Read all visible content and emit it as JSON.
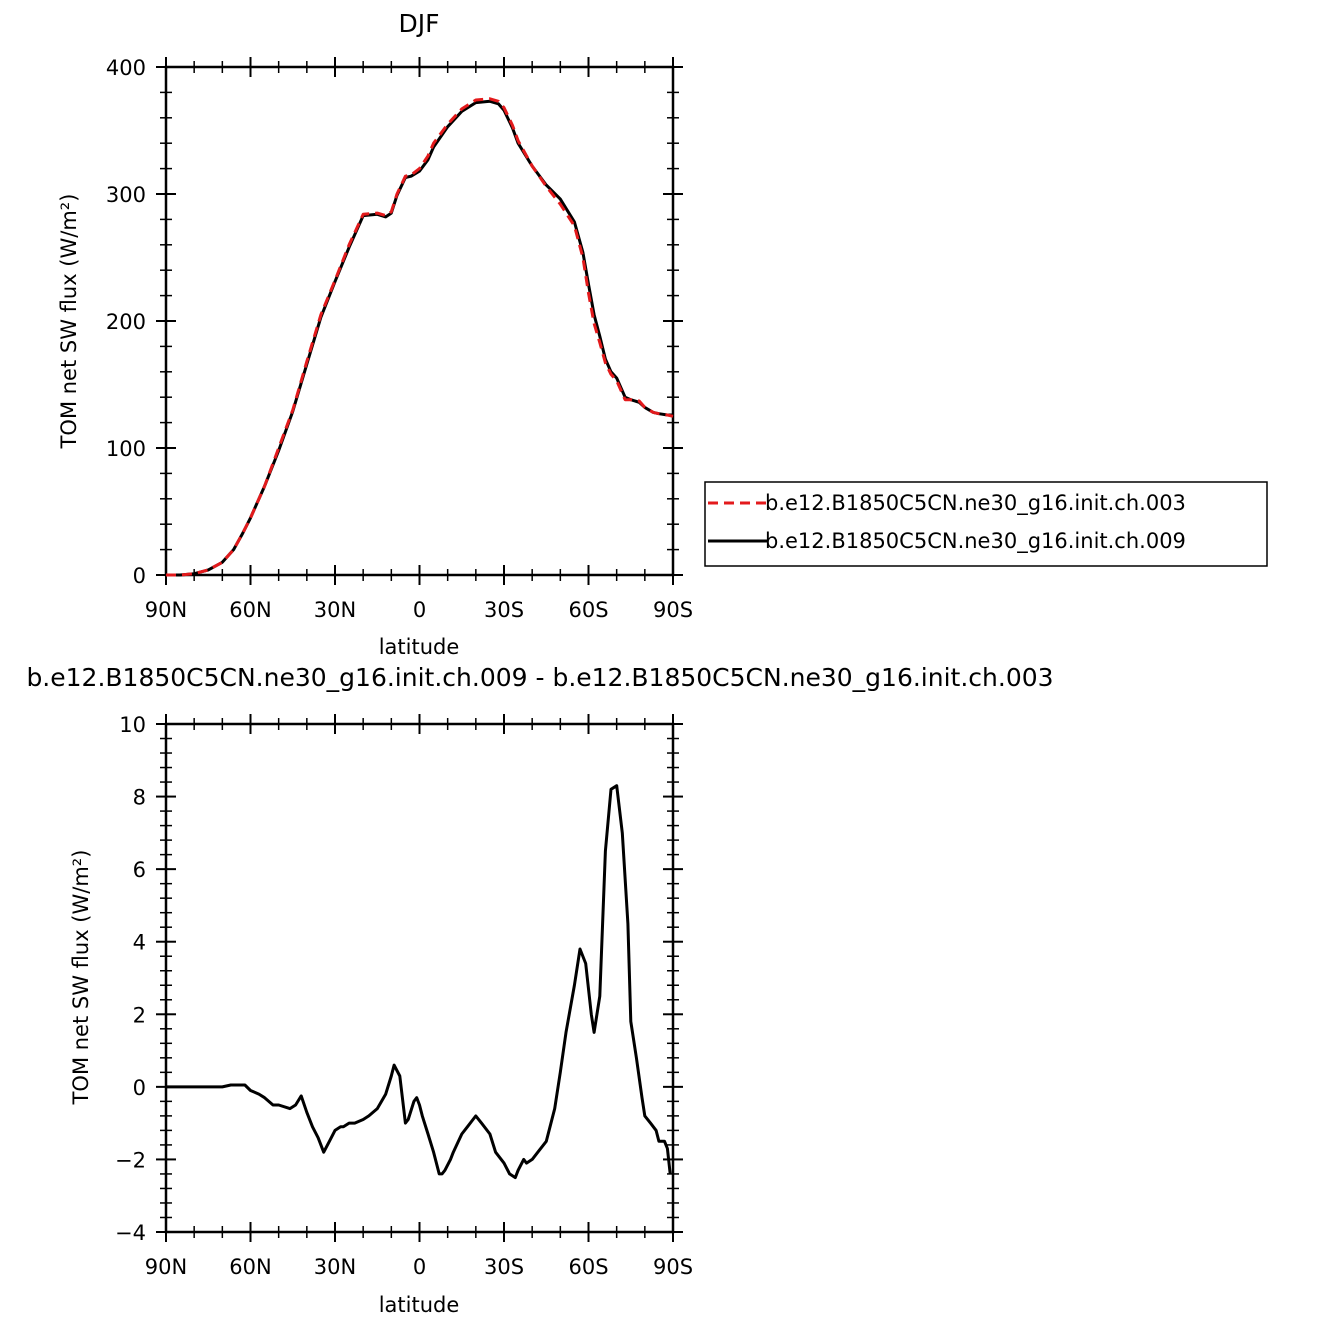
{
  "chart_data": [
    {
      "type": "line",
      "title": "DJF",
      "xlabel": "latitude",
      "ylabel": "TOM net SW flux (W/m²)",
      "xlim": [
        90,
        -90
      ],
      "ylim": [
        0,
        400
      ],
      "xticks": [
        90,
        60,
        30,
        0,
        -30,
        -60,
        -90
      ],
      "xtick_labels": [
        "90N",
        "60N",
        "30N",
        "0",
        "30S",
        "60S",
        "90S"
      ],
      "yticks": [
        0,
        100,
        200,
        300,
        400
      ],
      "ytick_labels": [
        "0",
        "100",
        "200",
        "300",
        "400"
      ],
      "legend_position": "right",
      "x": [
        90,
        85,
        80,
        75,
        70,
        66,
        63,
        60,
        55,
        50,
        45,
        40,
        35,
        30,
        25,
        20,
        15,
        12,
        10,
        8,
        5,
        3,
        0,
        -3,
        -5,
        -10,
        -15,
        -20,
        -25,
        -28,
        -30,
        -33,
        -35,
        -40,
        -45,
        -50,
        -55,
        -58,
        -60,
        -62,
        -64,
        -66,
        -68,
        -70,
        -73,
        -75,
        -78,
        -80,
        -83,
        -85,
        -88,
        -90
      ],
      "series": [
        {
          "name": "b.e12.B1850C5CN.ne30_g16.init.ch.003",
          "color": "#e31a1c",
          "dash": "dashed",
          "values": [
            0,
            0,
            1,
            4,
            10,
            20,
            32,
            45,
            70,
            100,
            130,
            168,
            205,
            232,
            260,
            284,
            285,
            283,
            286,
            300,
            314,
            315,
            320,
            330,
            340,
            355,
            367,
            374,
            375,
            373,
            368,
            354,
            342,
            322,
            306,
            292,
            275,
            250,
            222,
            198,
            183,
            167,
            158,
            153,
            138,
            138,
            137,
            132,
            128,
            127,
            126,
            125
          ]
        },
        {
          "name": "b.e12.B1850C5CN.ne30_g16.init.ch.009",
          "color": "#000000",
          "dash": "solid",
          "values": [
            0,
            0,
            1,
            4,
            10,
            20,
            32,
            45,
            70,
            98,
            129,
            166,
            203,
            231,
            258,
            283,
            284,
            282,
            285,
            299,
            313,
            314,
            318,
            327,
            337,
            353,
            365,
            372,
            373,
            371,
            366,
            352,
            340,
            322,
            307,
            296,
            278,
            254,
            229,
            205,
            188,
            170,
            160,
            155,
            140,
            138,
            136,
            132,
            128,
            127,
            126,
            126
          ]
        }
      ]
    },
    {
      "type": "line",
      "title": "b.e12.B1850C5CN.ne30_g16.init.ch.009 - b.e12.B1850C5CN.ne30_g16.init.ch.003",
      "xlabel": "latitude",
      "ylabel": "TOM net SW flux (W/m²)",
      "xlim": [
        90,
        -90
      ],
      "ylim": [
        -4,
        10
      ],
      "xticks": [
        90,
        60,
        30,
        0,
        -30,
        -60,
        -90
      ],
      "xtick_labels": [
        "90N",
        "60N",
        "30N",
        "0",
        "30S",
        "60S",
        "90S"
      ],
      "yticks": [
        -4,
        -2,
        0,
        2,
        4,
        6,
        8,
        10
      ],
      "ytick_labels": [
        "−4",
        "−2",
        "0",
        "2",
        "4",
        "6",
        "8",
        "10"
      ],
      "x": [
        90,
        85,
        80,
        75,
        70,
        67,
        64,
        62,
        60,
        57,
        55,
        52,
        50,
        46,
        44,
        42,
        40,
        38,
        36,
        35,
        34,
        32,
        30,
        28,
        27,
        25,
        23,
        20,
        18,
        15,
        12,
        10,
        9,
        7,
        5,
        4,
        2,
        1,
        0,
        -1,
        -3,
        -5,
        -7,
        -8,
        -9,
        -11,
        -12,
        -15,
        -17,
        -19,
        -20,
        -22,
        -25,
        -27,
        -30,
        -32,
        -34,
        -35,
        -37,
        -38,
        -40,
        -42,
        -45,
        -48,
        -50,
        -52,
        -55,
        -57,
        -59,
        -61,
        -62,
        -64,
        -65,
        -66,
        -68,
        -70,
        -72,
        -74,
        -75,
        -77,
        -79,
        -80,
        -82,
        -84,
        -85,
        -87,
        -88,
        -89
      ],
      "values": [
        0,
        0,
        0,
        0,
        0,
        0.05,
        0.05,
        0.05,
        -0.1,
        -0.2,
        -0.3,
        -0.5,
        -0.5,
        -0.6,
        -0.5,
        -0.25,
        -0.7,
        -1.1,
        -1.4,
        -1.6,
        -1.8,
        -1.5,
        -1.2,
        -1.1,
        -1.1,
        -1.0,
        -1.0,
        -0.9,
        -0.8,
        -0.6,
        -0.2,
        0.3,
        0.6,
        0.3,
        -1.0,
        -0.9,
        -0.4,
        -0.3,
        -0.5,
        -0.8,
        -1.3,
        -1.8,
        -2.4,
        -2.4,
        -2.3,
        -2.0,
        -1.8,
        -1.3,
        -1.1,
        -0.9,
        -0.8,
        -1.0,
        -1.3,
        -1.8,
        -2.1,
        -2.4,
        -2.5,
        -2.3,
        -2.0,
        -2.1,
        -2.0,
        -1.8,
        -1.5,
        -0.6,
        0.4,
        1.5,
        2.8,
        3.8,
        3.4,
        2.0,
        1.5,
        2.5,
        4.5,
        6.5,
        8.2,
        8.3,
        7.0,
        4.5,
        1.8,
        0.8,
        -0.3,
        -0.8,
        -1.0,
        -1.2,
        -1.5,
        -1.5,
        -1.7,
        -2.4
      ],
      "color": "#000000"
    }
  ]
}
